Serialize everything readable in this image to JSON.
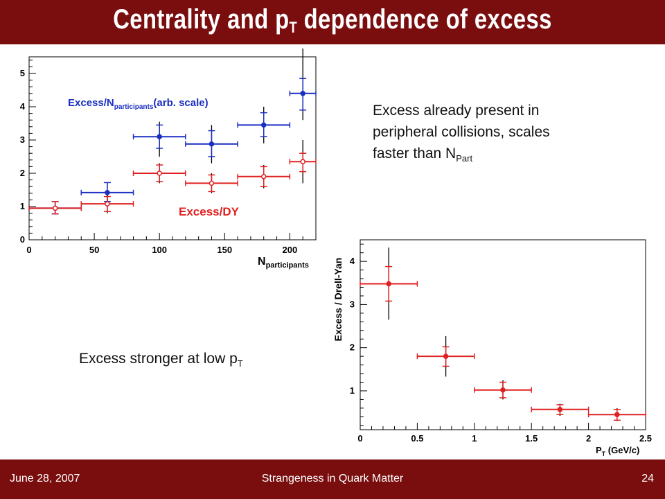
{
  "slide": {
    "title_main": "Centrality and p",
    "title_sub": "T",
    "title_rest": " dependence of excess",
    "note1_line1": "Excess already present in",
    "note1_line2": "peripheral collisions, scales",
    "note1_line3": "faster than N",
    "note1_sub": "Part",
    "note2_main": "Excess stronger at low p",
    "note2_sub": "T",
    "footer_date": "June 28, 2007",
    "footer_center": "Strangeness in Quark Matter",
    "footer_page": "24"
  },
  "colors": {
    "brand": "#7a0e0e",
    "blue": "#1a2fc0",
    "red": "#e02020",
    "black": "#000000"
  },
  "chart_data": [
    {
      "type": "scatter",
      "x_label_main": "N",
      "x_label_sub": "participants",
      "xlim": [
        0,
        220
      ],
      "ylim": [
        0,
        5.5
      ],
      "x_ticks": [
        0,
        50,
        100,
        150,
        200
      ],
      "y_ticks": [
        0,
        1,
        2,
        3,
        4,
        5
      ],
      "series": [
        {
          "name_main": "Excess/N",
          "name_sub": "participants",
          "name_tail": "(arb. scale)",
          "color": "#1a2fc0",
          "marker": "filled",
          "points": [
            {
              "x": 20,
              "xlo": 0,
              "xhi": 40,
              "y": 0.95,
              "ylo": 0.78,
              "yhi": 1.15,
              "sys_lo": 0.78,
              "sys_hi": 1.15
            },
            {
              "x": 60,
              "xlo": 40,
              "xhi": 80,
              "y": 1.42,
              "ylo": 1.15,
              "yhi": 1.72,
              "sys_lo": 1.15,
              "sys_hi": 1.72
            },
            {
              "x": 100,
              "xlo": 80,
              "xhi": 120,
              "y": 3.1,
              "ylo": 2.75,
              "yhi": 3.45,
              "sys_lo": 2.5,
              "sys_hi": 3.55
            },
            {
              "x": 140,
              "xlo": 120,
              "xhi": 160,
              "y": 2.88,
              "ylo": 2.5,
              "yhi": 3.28,
              "sys_lo": 2.3,
              "sys_hi": 3.45
            },
            {
              "x": 180,
              "xlo": 160,
              "xhi": 200,
              "y": 3.45,
              "ylo": 3.1,
              "yhi": 3.82,
              "sys_lo": 2.9,
              "sys_hi": 4.0
            },
            {
              "x": 210,
              "xlo": 200,
              "xhi": 220,
              "y": 4.4,
              "ylo": 3.9,
              "yhi": 4.85,
              "sys_lo": 3.6,
              "sys_hi": 5.75
            }
          ]
        },
        {
          "name_main": "Excess/DY",
          "color": "#e02020",
          "marker": "open",
          "points": [
            {
              "x": 20,
              "xlo": 0,
              "xhi": 40,
              "y": 0.95,
              "ylo": 0.78,
              "yhi": 1.15,
              "sys_lo": 0.78,
              "sys_hi": 1.15
            },
            {
              "x": 60,
              "xlo": 40,
              "xhi": 80,
              "y": 1.08,
              "ylo": 0.85,
              "yhi": 1.3,
              "sys_lo": 0.8,
              "sys_hi": 1.35
            },
            {
              "x": 100,
              "xlo": 80,
              "xhi": 120,
              "y": 2.0,
              "ylo": 1.75,
              "yhi": 2.25,
              "sys_lo": 1.7,
              "sys_hi": 2.3
            },
            {
              "x": 140,
              "xlo": 120,
              "xhi": 160,
              "y": 1.7,
              "ylo": 1.45,
              "yhi": 1.95,
              "sys_lo": 1.4,
              "sys_hi": 2.0
            },
            {
              "x": 180,
              "xlo": 160,
              "xhi": 200,
              "y": 1.9,
              "ylo": 1.6,
              "yhi": 2.2,
              "sys_lo": 1.55,
              "sys_hi": 2.25
            },
            {
              "x": 210,
              "xlo": 200,
              "xhi": 220,
              "y": 2.35,
              "ylo": 2.05,
              "yhi": 2.6,
              "sys_lo": 1.7,
              "sys_hi": 3.0
            }
          ]
        }
      ]
    },
    {
      "type": "scatter",
      "x_label_main": "P",
      "x_label_sub": "T",
      "x_label_tail": " (GeV/c)",
      "y_label": "Excess / Drell-Yan",
      "xlim": [
        0,
        2.5
      ],
      "ylim": [
        0.1,
        4.5
      ],
      "x_ticks": [
        0,
        0.5,
        1,
        1.5,
        2,
        2.5
      ],
      "y_ticks": [
        1,
        2,
        3,
        4
      ],
      "series": [
        {
          "color": "#e02020",
          "points": [
            {
              "x": 0.25,
              "xlo": 0.0,
              "xhi": 0.5,
              "y": 3.48,
              "ylo": 3.08,
              "yhi": 3.88,
              "sys_lo": 2.65,
              "sys_hi": 4.32
            },
            {
              "x": 0.75,
              "xlo": 0.5,
              "xhi": 1.0,
              "y": 1.8,
              "ylo": 1.57,
              "yhi": 2.02,
              "sys_lo": 1.33,
              "sys_hi": 2.27
            },
            {
              "x": 1.25,
              "xlo": 1.0,
              "xhi": 1.5,
              "y": 1.02,
              "ylo": 0.84,
              "yhi": 1.2,
              "sys_lo": 0.8,
              "sys_hi": 1.25
            },
            {
              "x": 1.75,
              "xlo": 1.5,
              "xhi": 2.0,
              "y": 0.57,
              "ylo": 0.45,
              "yhi": 0.68,
              "sys_lo": 0.42,
              "sys_hi": 0.7
            },
            {
              "x": 2.25,
              "xlo": 2.0,
              "xhi": 2.5,
              "y": 0.45,
              "ylo": 0.32,
              "yhi": 0.57,
              "sys_lo": 0.3,
              "sys_hi": 0.6
            }
          ]
        }
      ]
    }
  ]
}
